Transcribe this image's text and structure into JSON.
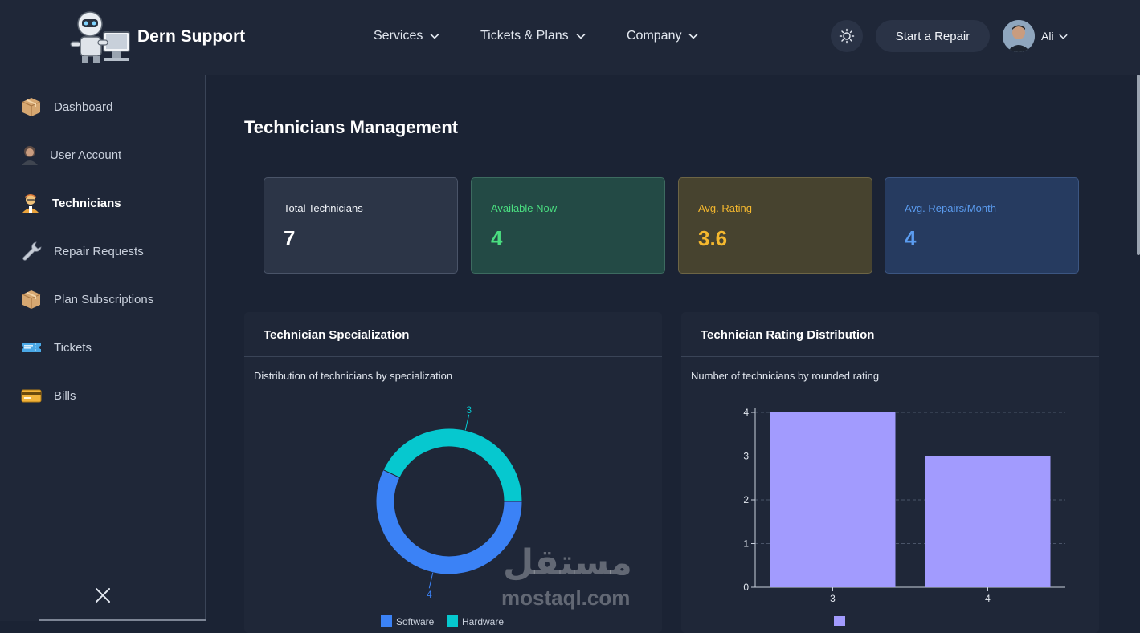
{
  "header": {
    "brand": "Dern Support",
    "nav": [
      {
        "label": "Services"
      },
      {
        "label": "Tickets & Plans"
      },
      {
        "label": "Company"
      }
    ],
    "start_repair": "Start a Repair",
    "user_name": "Ali"
  },
  "sidebar": {
    "items": [
      {
        "label": "Dashboard",
        "icon": "package-icon"
      },
      {
        "label": "User Account",
        "icon": "person-icon"
      },
      {
        "label": "Technicians",
        "icon": "technician-icon",
        "active": true
      },
      {
        "label": "Repair Requests",
        "icon": "wrench-icon"
      },
      {
        "label": "Plan Subscriptions",
        "icon": "package-icon"
      },
      {
        "label": "Tickets",
        "icon": "ticket-icon"
      },
      {
        "label": "Bills",
        "icon": "credit-card-icon"
      }
    ]
  },
  "page": {
    "title": "Technicians Management"
  },
  "stats": {
    "total": {
      "label": "Total Technicians",
      "value": "7"
    },
    "available": {
      "label": "Available Now",
      "value": "4"
    },
    "rating": {
      "label": "Avg. Rating",
      "value": "3.6"
    },
    "repairs": {
      "label": "Avg. Repairs/Month",
      "value": "4"
    }
  },
  "colors": {
    "accent_green": "#4ade80",
    "accent_yellow": "#f5b82e",
    "accent_blue": "#5b9cf0",
    "donut_software": "#3b82f6",
    "donut_hardware": "#06c8cf",
    "bar_fill": "#a29bfe"
  },
  "cards": {
    "specialization": {
      "title": "Technician Specialization",
      "subtitle": "Distribution of technicians by specialization"
    },
    "rating": {
      "title": "Technician Rating Distribution",
      "subtitle": "Number of technicians by rounded rating"
    }
  },
  "chart_data": [
    {
      "type": "pie",
      "title": "Distribution of technicians by specialization",
      "slices": [
        {
          "label": "Software",
          "value": 4
        },
        {
          "label": "Hardware",
          "value": 3
        }
      ],
      "legend_position": "bottom"
    },
    {
      "type": "bar",
      "title": "Number of technicians by rounded rating",
      "categories": [
        "3",
        "4"
      ],
      "values": [
        4,
        3
      ],
      "ylim": [
        0,
        4
      ],
      "yticks": [
        0,
        1,
        2,
        3,
        4
      ],
      "grid": true,
      "legend_position": "bottom"
    }
  ],
  "watermark": {
    "arabic": "مستقل",
    "latin": "mostaql.com"
  }
}
